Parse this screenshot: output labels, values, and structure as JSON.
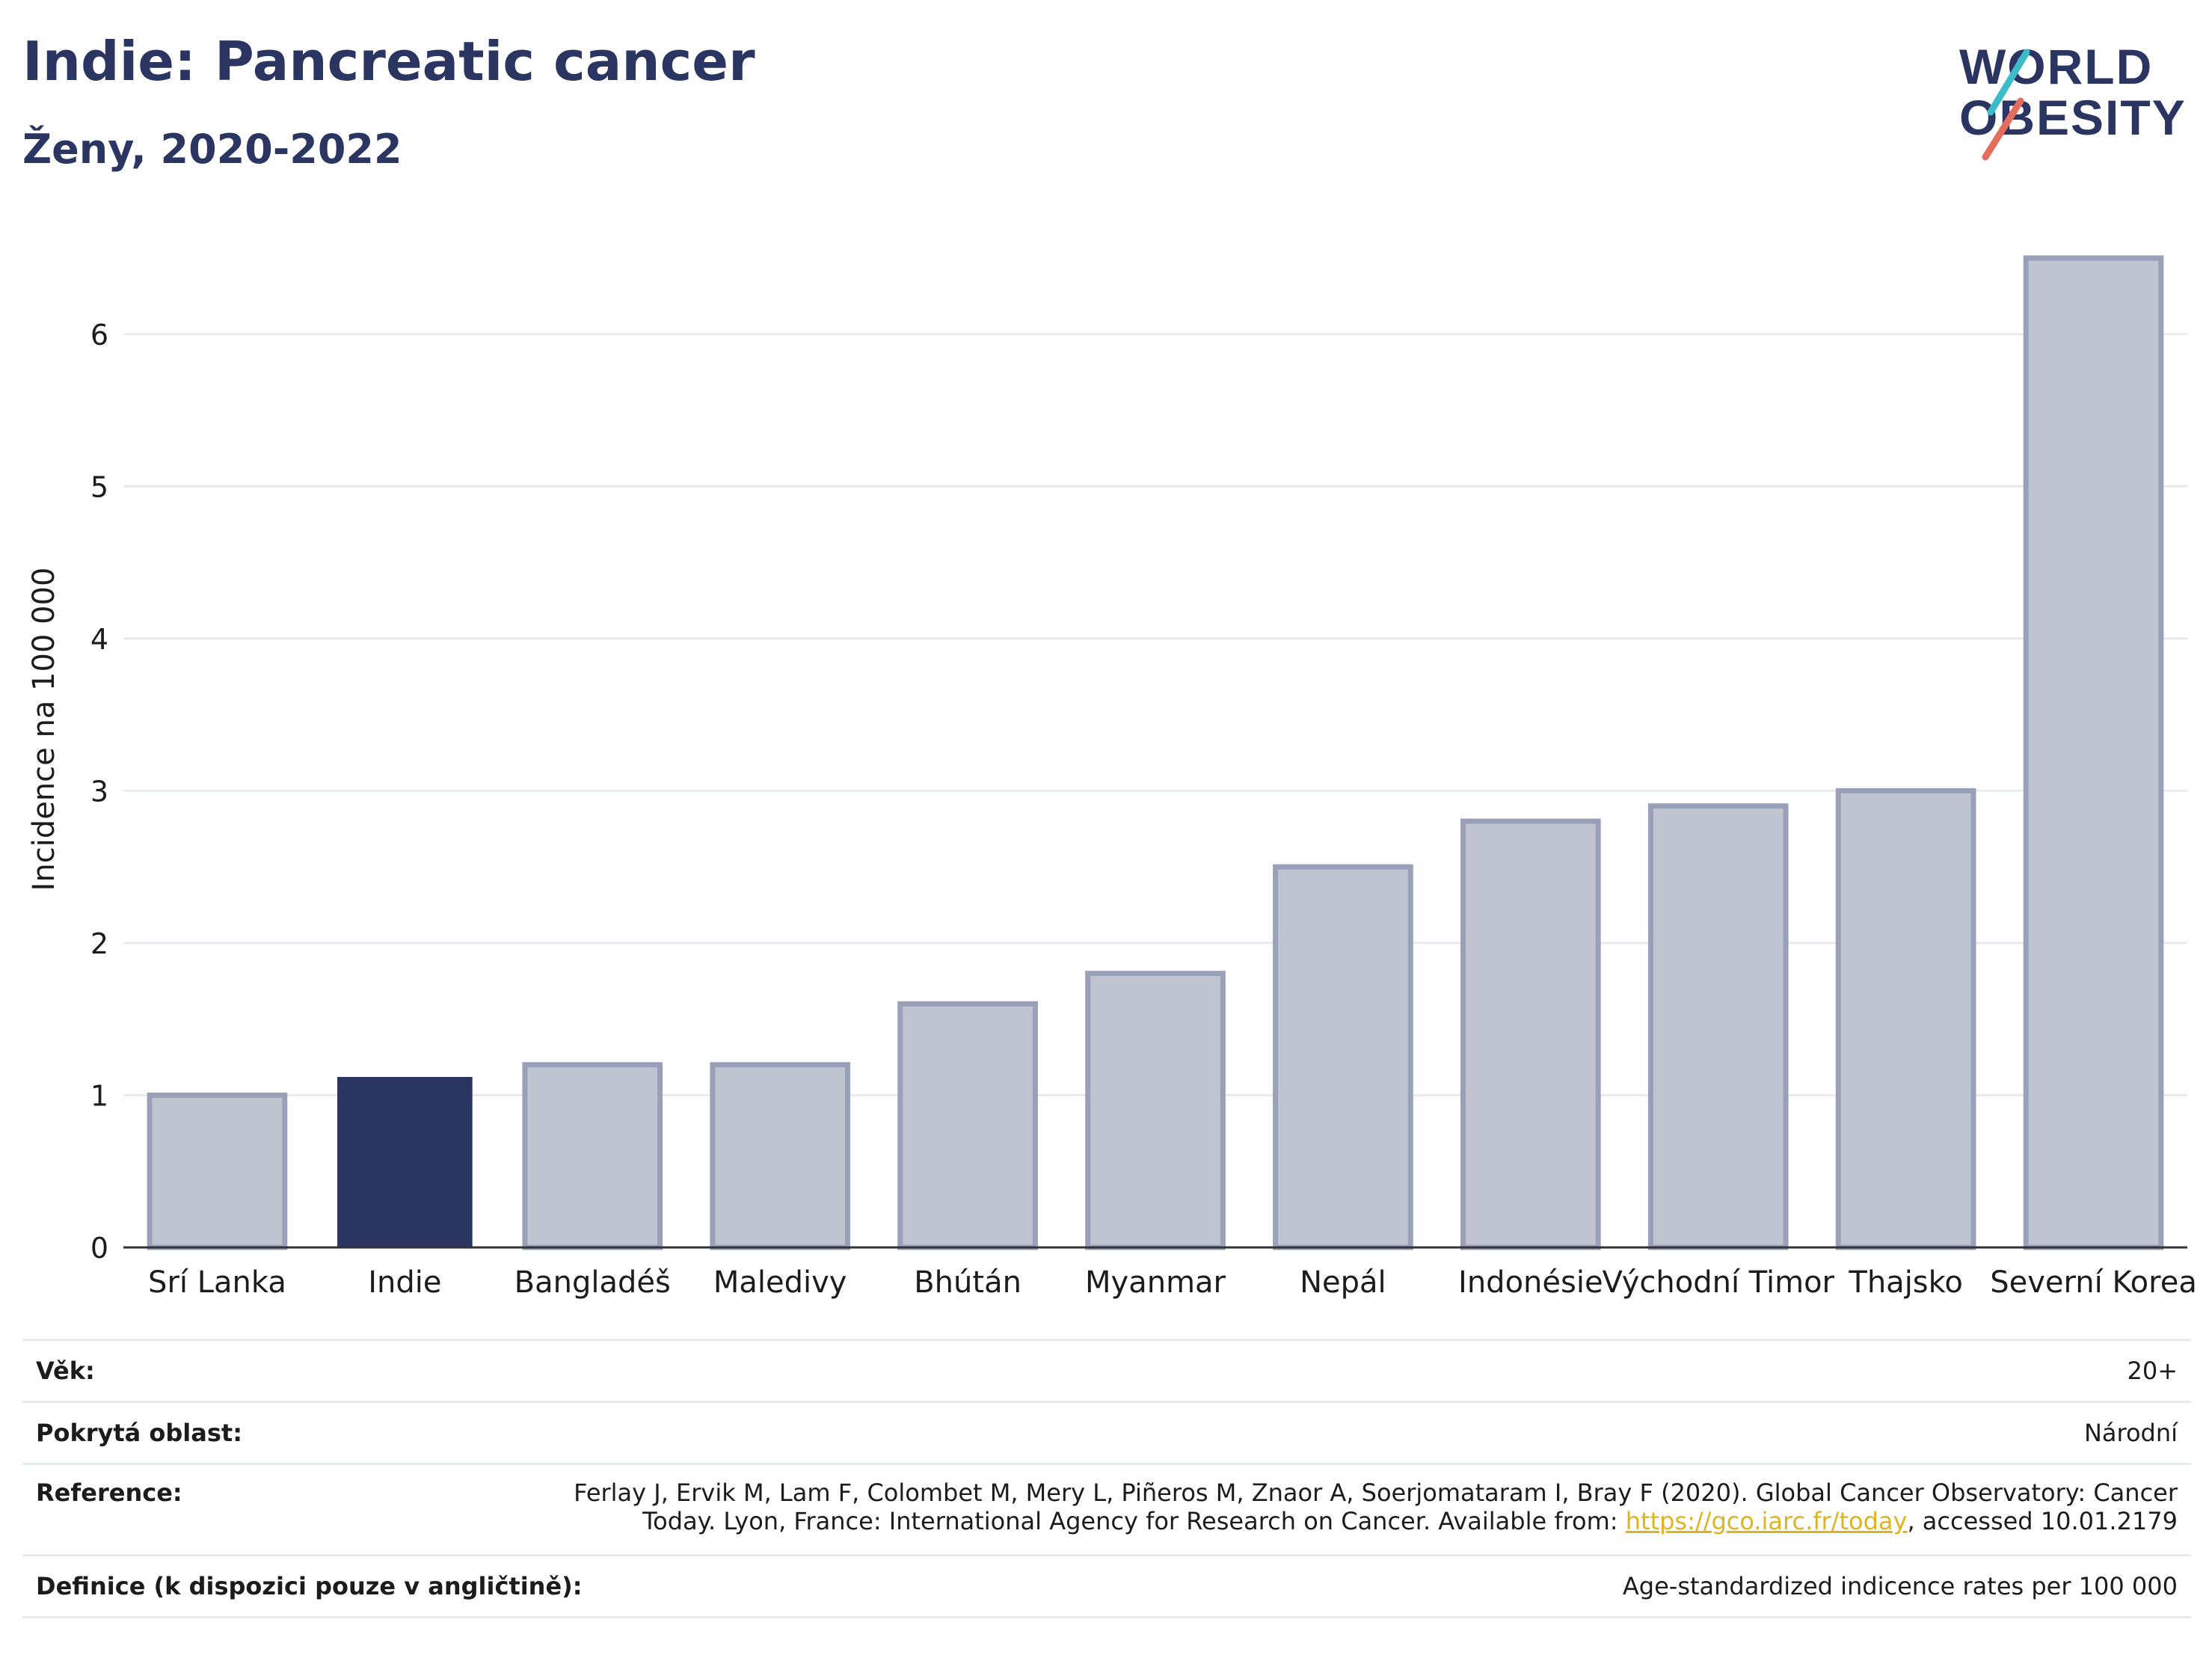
{
  "header": {
    "title": "Indie: Pancreatic cancer",
    "subtitle": "Ženy, 2020-2022"
  },
  "logo": {
    "line1": "WORLD",
    "line2": "OBESITY"
  },
  "chart_data": {
    "type": "bar",
    "categories": [
      "Srí Lanka",
      "Indie",
      "Bangladéš",
      "Maledivy",
      "Bhútán",
      "Myanmar",
      "Nepál",
      "Indonésie",
      "Východní Timor",
      "Thajsko",
      "Severní Korea"
    ],
    "values": [
      1.0,
      1.12,
      1.2,
      1.2,
      1.6,
      1.8,
      2.5,
      2.8,
      2.9,
      3.0,
      6.5
    ],
    "highlight": "Indie",
    "ylabel": "Incidence na 100 000",
    "ylim": [
      0,
      6.5
    ],
    "yticks": [
      0,
      1,
      2,
      3,
      4,
      5,
      6
    ],
    "grid": true,
    "colors": {
      "highlight": "#2a3561",
      "other_fill": "#c0c4d1",
      "other_stroke": "#9aa0b8",
      "grid": "#e7ebf0",
      "axis": "#333333"
    }
  },
  "info": {
    "age_label": "Věk:",
    "age_value": "20+",
    "coverage_label": "Pokrytá oblast:",
    "coverage_value": "Národní",
    "reference_label": "Reference:",
    "reference_line1": "Ferlay J, Ervik M, Lam F, Colombet M, Mery L, Piñeros M, Znaor A, Soerjomataram I, Bray F (2020). Global Cancer Observatory: Cancer",
    "reference_line2_pre": "Today. Lyon, France: International Agency for Research on Cancer. Available from: ",
    "reference_link": "https://gco.iarc.fr/today",
    "reference_line2_post": ", accessed 10.01.2179",
    "definition_label": "Definice (k dispozici pouze v angličtině):",
    "definition_value": "Age-standardized indicence rates per 100 000"
  }
}
